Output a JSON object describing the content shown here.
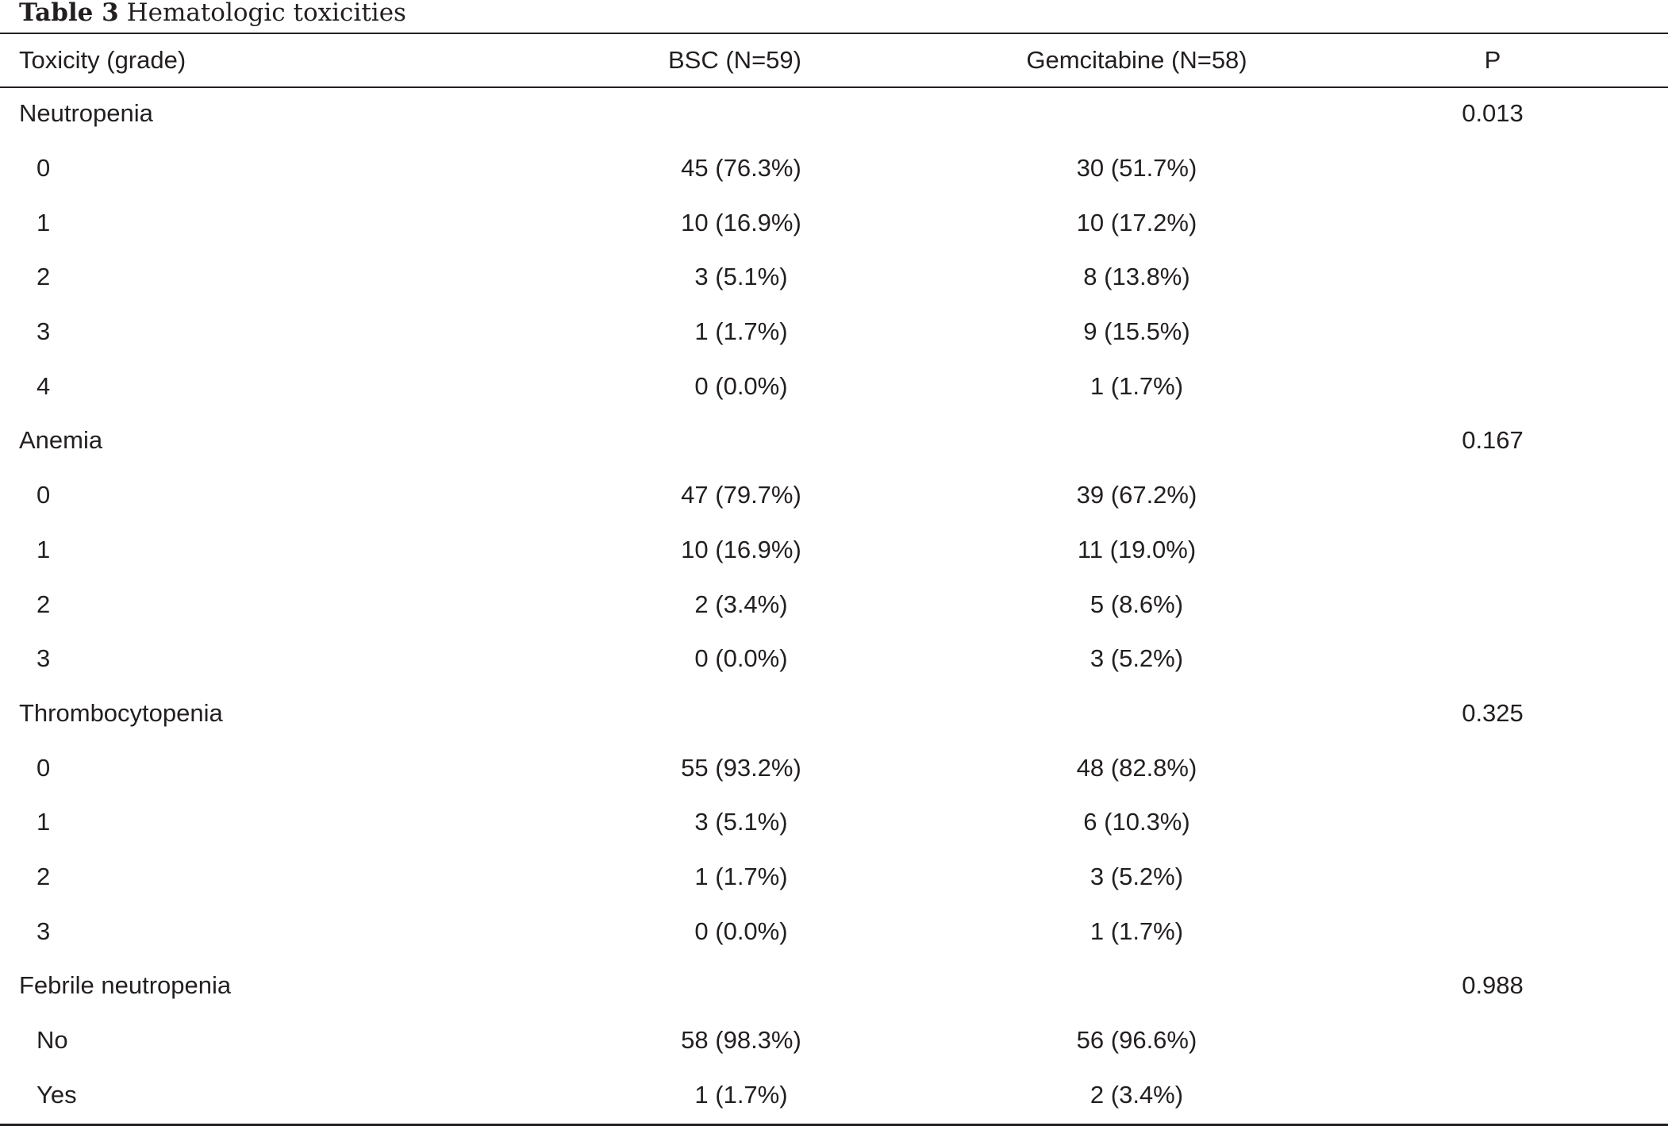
{
  "caption": {
    "label": "Table 3",
    "title": "Hematologic toxicities"
  },
  "columns": {
    "toxicity": "Toxicity (grade)",
    "bsc": "BSC (N=59)",
    "gemcitabine": "Gemcitabine (N=58)",
    "p": "P"
  },
  "rows": [
    {
      "label": "Neutropenia",
      "bsc": "",
      "gem": "",
      "p": "0.013"
    },
    {
      "label": "0",
      "bsc": "45 (76.3%)",
      "gem": "30 (51.7%)",
      "p": ""
    },
    {
      "label": "1",
      "bsc": "10 (16.9%)",
      "gem": "10 (17.2%)",
      "p": ""
    },
    {
      "label": "2",
      "bsc": "3 (5.1%)",
      "gem": "8 (13.8%)",
      "p": ""
    },
    {
      "label": "3",
      "bsc": "1 (1.7%)",
      "gem": "9 (15.5%)",
      "p": ""
    },
    {
      "label": "4",
      "bsc": "0 (0.0%)",
      "gem": "1 (1.7%)",
      "p": ""
    },
    {
      "label": "Anemia",
      "bsc": "",
      "gem": "",
      "p": "0.167"
    },
    {
      "label": "0",
      "bsc": "47 (79.7%)",
      "gem": "39 (67.2%)",
      "p": ""
    },
    {
      "label": "1",
      "bsc": "10 (16.9%)",
      "gem": "11 (19.0%)",
      "p": ""
    },
    {
      "label": "2",
      "bsc": "2 (3.4%)",
      "gem": "5 (8.6%)",
      "p": ""
    },
    {
      "label": "3",
      "bsc": "0 (0.0%)",
      "gem": "3 (5.2%)",
      "p": ""
    },
    {
      "label": "Thrombocytopenia",
      "bsc": "",
      "gem": "",
      "p": "0.325"
    },
    {
      "label": "0",
      "bsc": "55 (93.2%)",
      "gem": "48 (82.8%)",
      "p": ""
    },
    {
      "label": "1",
      "bsc": "3 (5.1%)",
      "gem": "6 (10.3%)",
      "p": ""
    },
    {
      "label": "2",
      "bsc": "1 (1.7%)",
      "gem": "3 (5.2%)",
      "p": ""
    },
    {
      "label": "3",
      "bsc": "0 (0.0%)",
      "gem": "1 (1.7%)",
      "p": ""
    },
    {
      "label": "Febrile neutropenia",
      "bsc": "",
      "gem": "",
      "p": "0.988"
    },
    {
      "label": "No",
      "bsc": "58 (98.3%)",
      "gem": "56 (96.6%)",
      "p": ""
    },
    {
      "label": "Yes",
      "bsc": "1 (1.7%)",
      "gem": "2 (3.4%)",
      "p": ""
    }
  ]
}
